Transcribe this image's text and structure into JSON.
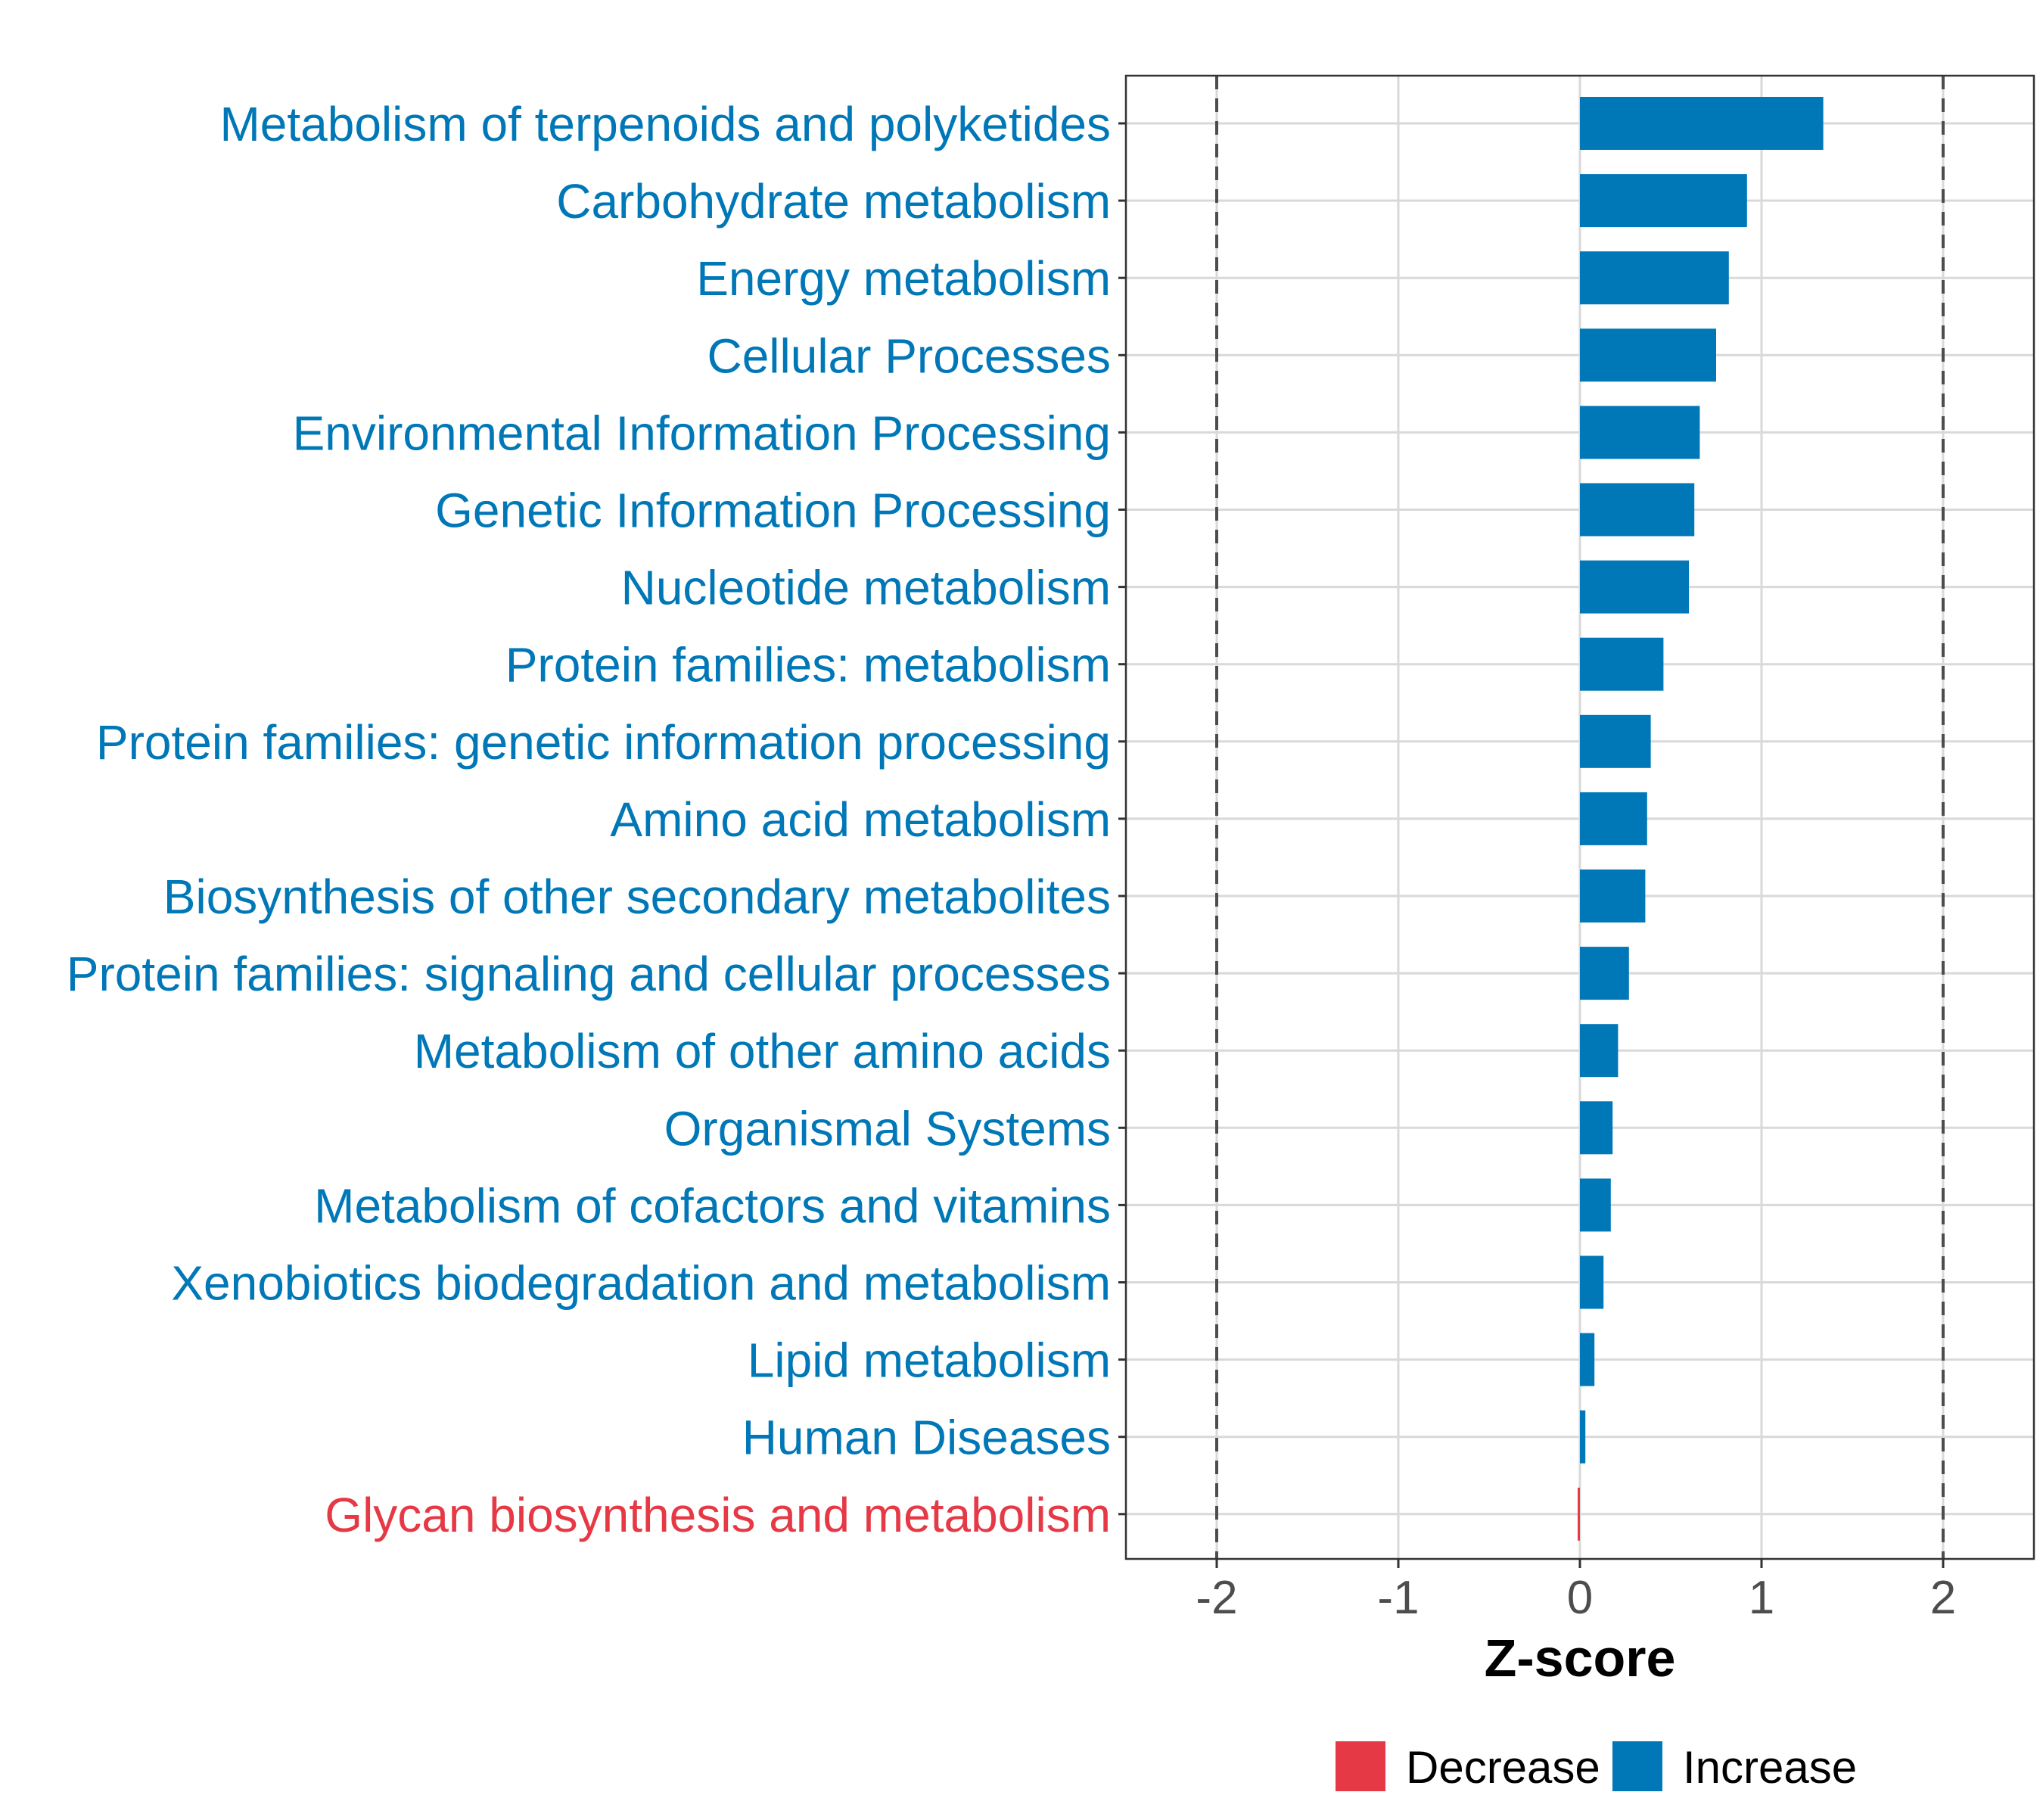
{
  "chart_data": {
    "type": "bar",
    "orientation": "horizontal",
    "title": "",
    "xlabel": "Z-score",
    "ylabel": "",
    "xlim": [
      -2.5,
      2.5
    ],
    "xticks": [
      -2,
      -1,
      0,
      1,
      2
    ],
    "xtick_labels": [
      "-2",
      "-1",
      "0",
      "1",
      "2"
    ],
    "reference_lines": [
      -2,
      2
    ],
    "grid": true,
    "categories": [
      "Metabolism of terpenoids and polyketides",
      "Carbohydrate metabolism",
      "Energy metabolism",
      "Cellular Processes",
      "Environmental Information Processing",
      "Genetic Information Processing",
      "Nucleotide metabolism",
      "Protein families: metabolism",
      "Protein families: genetic information processing",
      "Amino acid metabolism",
      "Biosynthesis of other secondary metabolites",
      "Protein families: signaling and cellular processes",
      "Metabolism of other amino acids",
      "Organismal Systems",
      "Metabolism of cofactors and vitamins",
      "Xenobiotics biodegradation and metabolism",
      "Lipid metabolism",
      "Human Diseases",
      "Glycan biosynthesis and metabolism"
    ],
    "values": [
      1.34,
      0.92,
      0.82,
      0.75,
      0.66,
      0.63,
      0.6,
      0.46,
      0.39,
      0.37,
      0.36,
      0.27,
      0.21,
      0.18,
      0.17,
      0.13,
      0.08,
      0.03,
      -0.01
    ],
    "groups": [
      "Increase",
      "Increase",
      "Increase",
      "Increase",
      "Increase",
      "Increase",
      "Increase",
      "Increase",
      "Increase",
      "Increase",
      "Increase",
      "Increase",
      "Increase",
      "Increase",
      "Increase",
      "Increase",
      "Increase",
      "Increase",
      "Decrease"
    ],
    "legend": {
      "position": "bottom",
      "entries": [
        {
          "label": "Decrease",
          "color": "#E63946"
        },
        {
          "label": "Increase",
          "color": "#0077B6"
        }
      ]
    },
    "colors": {
      "Increase": "#0077B6",
      "Decrease": "#E63946"
    }
  }
}
